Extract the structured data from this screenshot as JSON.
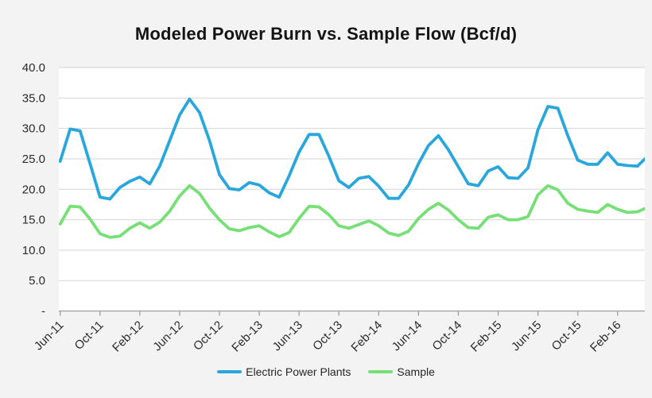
{
  "chart": {
    "title": "Modeled Power Burn vs. Sample Flow (Bcf/d)",
    "background": "#f3f3f3",
    "plot_background": "#ffffff",
    "gridline_color": "#d6d6d6",
    "axis_color": "#9e9e9e",
    "label_color": "#2b2b2b"
  },
  "chart_data": {
    "type": "line",
    "title": "Modeled Power Burn vs. Sample Flow (Bcf/d)",
    "xlabel": "",
    "ylabel": "",
    "ylim": [
      0,
      40
    ],
    "y_tick_step": 5,
    "grid": true,
    "legend_position": "bottom",
    "y_tick_labels_top_down": [
      "40.0",
      "35.0",
      "30.0",
      "25.0",
      "20.0",
      "15.0",
      "10.0",
      "5.0",
      "-"
    ],
    "x_tick_labels": [
      "Jun-11",
      "Oct-11",
      "Feb-12",
      "Jun-12",
      "Oct-12",
      "Feb-13",
      "Jun-13",
      "Oct-13",
      "Feb-14",
      "Jun-14",
      "Oct-14",
      "Feb-15",
      "Jun-15",
      "Oct-15",
      "Feb-16"
    ],
    "x_tick_every_n_points": 4,
    "x": [
      "Jun-11",
      "Jul-11",
      "Aug-11",
      "Sep-11",
      "Oct-11",
      "Nov-11",
      "Dec-11",
      "Jan-12",
      "Feb-12",
      "Mar-12",
      "Apr-12",
      "May-12",
      "Jun-12",
      "Jul-12",
      "Aug-12",
      "Sep-12",
      "Oct-12",
      "Nov-12",
      "Dec-12",
      "Jan-13",
      "Feb-13",
      "Mar-13",
      "Apr-13",
      "May-13",
      "Jun-13",
      "Jul-13",
      "Aug-13",
      "Sep-13",
      "Oct-13",
      "Nov-13",
      "Dec-13",
      "Jan-14",
      "Feb-14",
      "Mar-14",
      "Apr-14",
      "May-14",
      "Jun-14",
      "Jul-14",
      "Aug-14",
      "Sep-14",
      "Oct-14",
      "Nov-14",
      "Dec-14",
      "Jan-15",
      "Feb-15",
      "Mar-15",
      "Apr-15",
      "May-15",
      "Jun-15",
      "Jul-15",
      "Aug-15",
      "Sep-15",
      "Oct-15",
      "Nov-15",
      "Dec-15",
      "Jan-16",
      "Feb-16",
      "Mar-16",
      "Apr-16",
      "May-16"
    ],
    "series": [
      {
        "name": "Electric Power Plants",
        "color": "#29a7dd",
        "values": [
          24.6,
          29.9,
          29.6,
          24.2,
          18.7,
          18.4,
          20.3,
          21.3,
          22.0,
          20.9,
          23.8,
          28.0,
          32.2,
          34.8,
          32.6,
          28.0,
          22.4,
          20.1,
          19.9,
          21.1,
          20.7,
          19.4,
          18.7,
          22.2,
          26.1,
          29.0,
          29.0,
          25.4,
          21.4,
          20.3,
          21.8,
          22.1,
          20.5,
          18.5,
          18.5,
          20.7,
          24.2,
          27.2,
          28.8,
          26.5,
          23.7,
          20.9,
          20.6,
          23.0,
          23.7,
          21.9,
          21.8,
          23.5,
          29.8,
          33.6,
          33.3,
          28.8,
          24.8,
          24.1,
          24.1,
          26.0,
          24.1,
          23.9,
          23.8,
          25.4
        ]
      },
      {
        "name": "Sample",
        "color": "#76df76",
        "values": [
          14.3,
          17.2,
          17.1,
          15.1,
          12.7,
          12.1,
          12.3,
          13.6,
          14.5,
          13.6,
          14.6,
          16.4,
          18.9,
          20.6,
          19.3,
          16.9,
          15.0,
          13.5,
          13.2,
          13.7,
          14.0,
          13.0,
          12.2,
          12.9,
          15.2,
          17.2,
          17.1,
          15.8,
          14.0,
          13.6,
          14.2,
          14.8,
          14.0,
          12.8,
          12.4,
          13.1,
          15.2,
          16.7,
          17.7,
          16.6,
          15.0,
          13.7,
          13.6,
          15.4,
          15.8,
          15.0,
          15.0,
          15.5,
          19.1,
          20.6,
          19.9,
          17.7,
          16.7,
          16.4,
          16.2,
          17.5,
          16.7,
          16.2,
          16.3,
          17.0
        ]
      }
    ]
  }
}
